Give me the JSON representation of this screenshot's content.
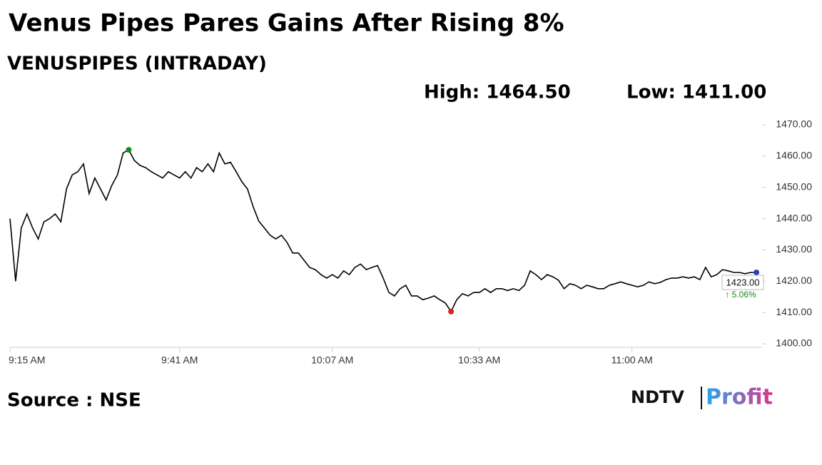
{
  "chart_data": {
    "type": "line",
    "title": "Venus Pipes Pares Gains After Rising 8%",
    "subtitle": "VENUSPIPES (INTRADAY)",
    "high": "High: 1464.50",
    "low": "Low: 1411.00",
    "source": "Source : NSE",
    "logo": [
      "NDTV",
      "Profit"
    ],
    "last_price_label": "1423.00",
    "change_label": "↑ 5.06%",
    "change_color": "#1a8a1a",
    "x": [
      0,
      1,
      2,
      3,
      4,
      5,
      6,
      7,
      8,
      9,
      10,
      11,
      12,
      13,
      14,
      15,
      16,
      17,
      18,
      19,
      20,
      21,
      22,
      23,
      24,
      25,
      26,
      27,
      28,
      29,
      30,
      31,
      32,
      33,
      34,
      35,
      36,
      37,
      38,
      39,
      40,
      41,
      42,
      43,
      44,
      45,
      46,
      47,
      48,
      49,
      50,
      51,
      52,
      53,
      54,
      55,
      56,
      57,
      58,
      59,
      60,
      61,
      62,
      63,
      64,
      65,
      66,
      67,
      68,
      69,
      70,
      71,
      72,
      73,
      74,
      75,
      76,
      77,
      78,
      79,
      80,
      81,
      82,
      83,
      84,
      85,
      86,
      87,
      88,
      89,
      90,
      91,
      92,
      93,
      94,
      95,
      96,
      97,
      98,
      99,
      100,
      101,
      102,
      103,
      104,
      105,
      106,
      107,
      108,
      109,
      110,
      111,
      112,
      113,
      114,
      115,
      116,
      117,
      118,
      119,
      120,
      121,
      122,
      123,
      124,
      125,
      126,
      127,
      128,
      129,
      130,
      131,
      132
    ],
    "series": [
      {
        "name": "VENUSPIPES",
        "color": "#000000",
        "values": [
          1440,
          1420,
          1437,
          1441.5,
          1437,
          1433.5,
          1439,
          1440,
          1441.5,
          1439,
          1449.5,
          1454,
          1455,
          1457.5,
          1448,
          1453,
          1449.5,
          1446,
          1450.6,
          1454,
          1461,
          1462,
          1458.6,
          1457,
          1456.3,
          1455,
          1454,
          1453,
          1455,
          1454,
          1453,
          1455,
          1453,
          1456.3,
          1455,
          1457.5,
          1455,
          1461,
          1457.5,
          1458,
          1455,
          1451.8,
          1449.5,
          1443.8,
          1439.2,
          1437,
          1434.7,
          1433.5,
          1434.7,
          1432.4,
          1429,
          1429,
          1426.7,
          1424.4,
          1423.7,
          1422.1,
          1421,
          1422.1,
          1421,
          1423.3,
          1422.1,
          1424.4,
          1425.5,
          1423.7,
          1424.4,
          1425,
          1421,
          1416.4,
          1415.3,
          1417.6,
          1418.7,
          1415.3,
          1415.3,
          1414.1,
          1414.6,
          1415.3,
          1414.1,
          1413,
          1410.3,
          1414.1,
          1416,
          1415.3,
          1416.4,
          1416.4,
          1417.6,
          1416.4,
          1417.6,
          1417.6,
          1417,
          1417.6,
          1417,
          1418.7,
          1423.3,
          1422.1,
          1420.5,
          1422.1,
          1421.4,
          1420.3,
          1417.6,
          1419.2,
          1418.7,
          1417.6,
          1418.7,
          1418.2,
          1417.6,
          1417.6,
          1418.7,
          1419.2,
          1419.8,
          1419.2,
          1418.7,
          1418.2,
          1418.7,
          1419.8,
          1419.2,
          1419.6,
          1420.5,
          1421,
          1421,
          1421.4,
          1421,
          1421.4,
          1420.5,
          1424.4,
          1421.4,
          1422.1,
          1423.7,
          1423.3,
          1422.8,
          1422.8,
          1422.4,
          1422.8,
          1422.8
        ]
      }
    ],
    "markers": {
      "high_color": "#1a8a1a",
      "low_color": "#e02020",
      "last_color": "#2a3fc0"
    },
    "xlim": [
      0,
      133
    ],
    "xticks": [
      {
        "value": 0,
        "label": "9:15 AM"
      },
      {
        "value": 30,
        "label": "9:41 AM"
      },
      {
        "value": 57,
        "label": "10:07 AM"
      },
      {
        "value": 83,
        "label": "10:33 AM"
      },
      {
        "value": 110,
        "label": "11:00 AM"
      }
    ],
    "ylim": [
      1400,
      1470
    ],
    "yticks": [
      {
        "value": 1400,
        "label": "1400.00"
      },
      {
        "value": 1410,
        "label": "1410.00"
      },
      {
        "value": 1420,
        "label": "1420.00"
      },
      {
        "value": 1430,
        "label": "1430.00"
      },
      {
        "value": 1440,
        "label": "1440.00"
      },
      {
        "value": 1450,
        "label": "1450.00"
      },
      {
        "value": 1460,
        "label": "1460.00"
      },
      {
        "value": 1470,
        "label": "1470.00"
      }
    ],
    "grid": false
  }
}
